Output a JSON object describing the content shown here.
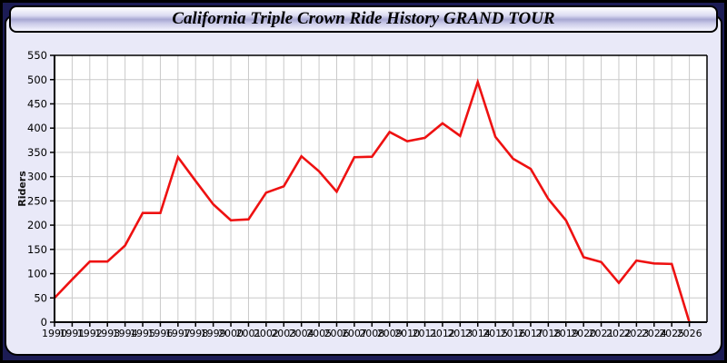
{
  "title": "California Triple Crown Ride History GRAND TOUR",
  "chart_data": {
    "type": "line",
    "title": "California Triple Crown Ride History GRAND TOUR",
    "xlabel": "",
    "ylabel": "Riders",
    "x": [
      1990,
      1991,
      1992,
      1993,
      1994,
      1995,
      1996,
      1997,
      1998,
      1999,
      2000,
      2001,
      2002,
      2003,
      2004,
      2005,
      2006,
      2007,
      2008,
      2009,
      2010,
      2011,
      2012,
      2013,
      2014,
      2015,
      2016,
      2017,
      2018,
      2019,
      2020,
      2021,
      2022,
      2023,
      2024,
      2025,
      2026
    ],
    "series": [
      {
        "name": "Riders",
        "values": [
          50,
          88,
          125,
          125,
          158,
          225,
          225,
          340,
          291,
          243,
          210,
          212,
          267,
          280,
          342,
          311,
          269,
          340,
          341,
          392,
          373,
          380,
          410,
          384,
          495,
          382,
          337,
          316,
          254,
          210,
          134,
          124,
          81,
          127,
          121,
          120,
          0
        ]
      }
    ],
    "ylim": [
      0,
      550
    ],
    "ytick_step": 50,
    "grid": true,
    "legend": "none"
  },
  "colors": {
    "line": "#ee1111",
    "grid": "#c9c9c9",
    "plot_bg": "#ffffff",
    "panel_bg": "#e9e9f8",
    "page_bg": "#1c1c55",
    "axis": "#000000",
    "tick_text": "#000000"
  }
}
